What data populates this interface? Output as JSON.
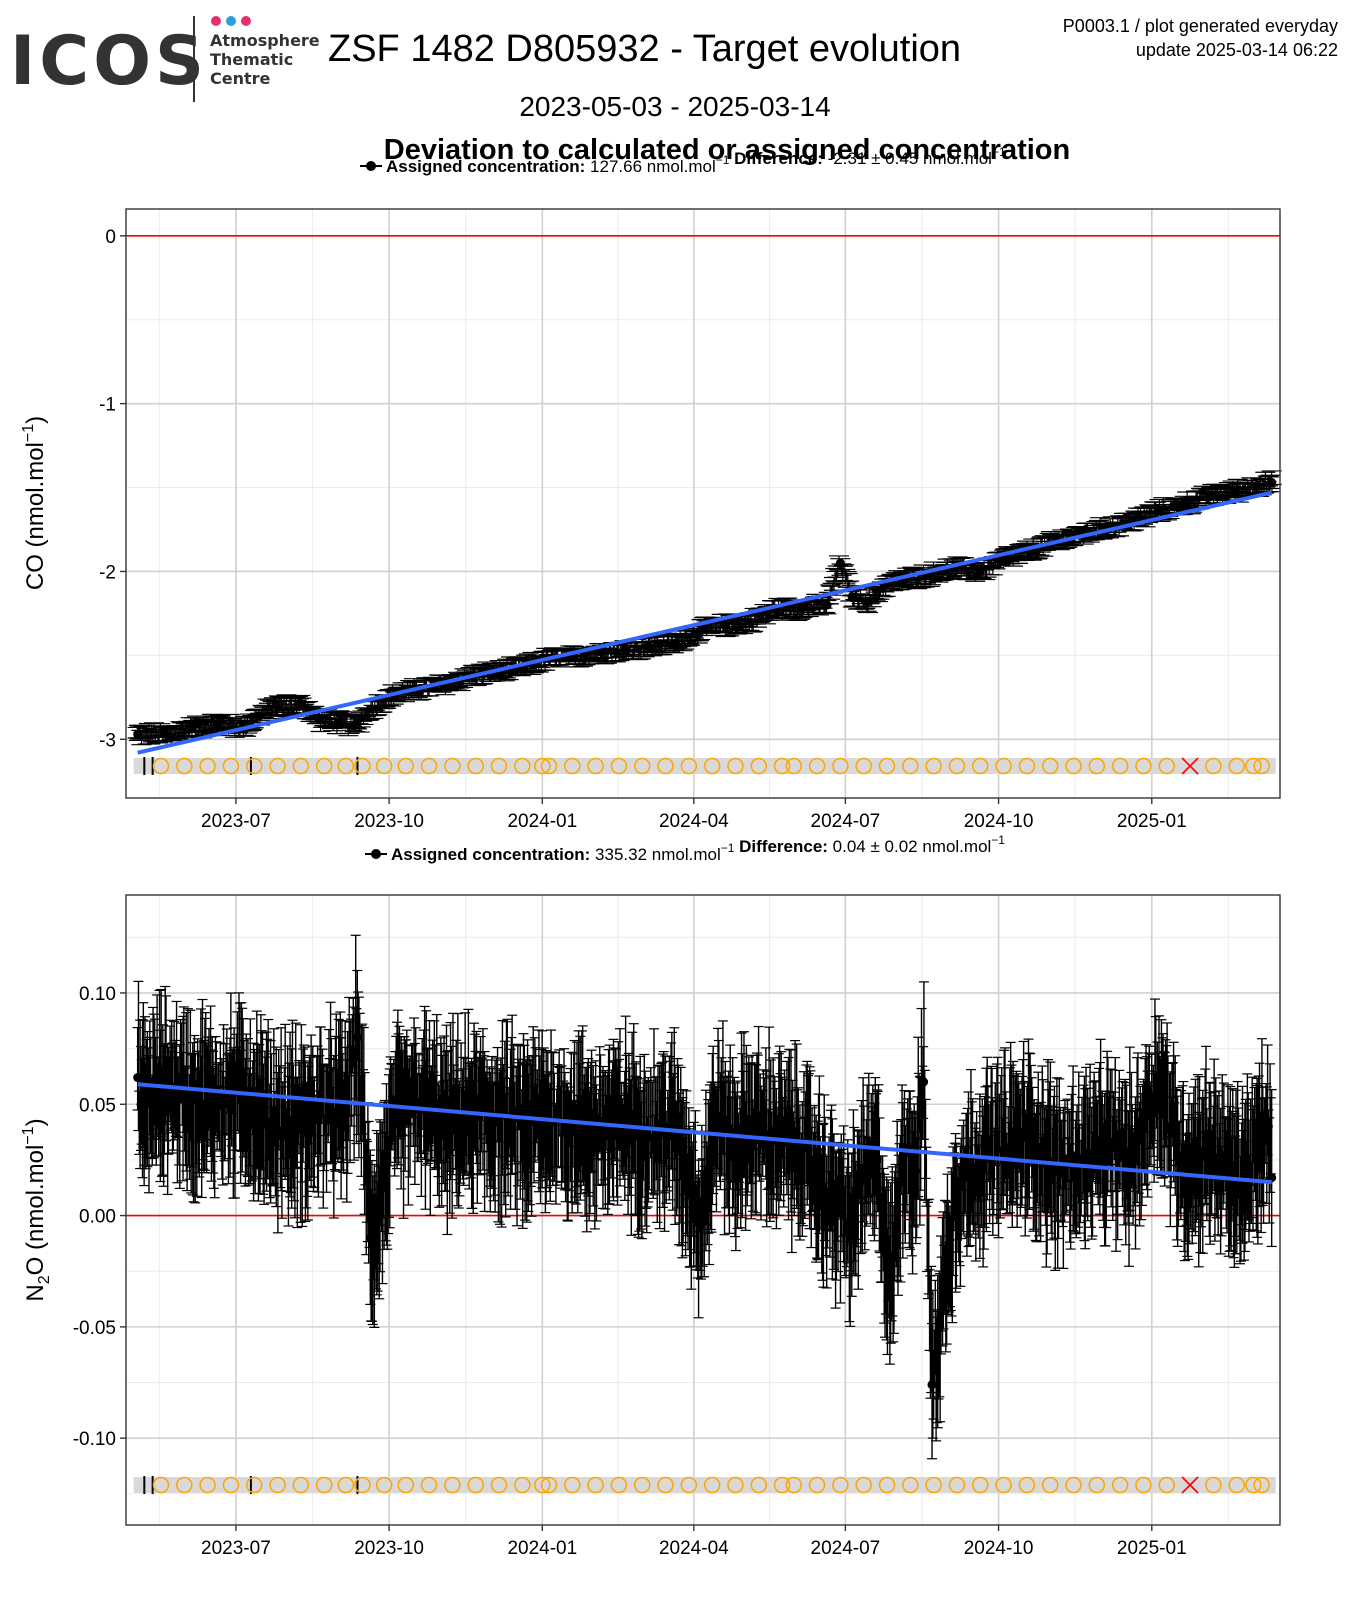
{
  "logo": {
    "wordmark": "ICOS",
    "subtitle_lines": [
      "Atmosphere",
      "Thematic",
      "Centre"
    ],
    "dot_colors": [
      "#e3316f",
      "#2d9fe0",
      "#e3316f"
    ]
  },
  "header": {
    "title": "ZSF 1482 D805932 - Target evolution",
    "date_range": "2023-05-03 - 2025-03-14",
    "subtitle": "Deviation to calculated or assigned concentration",
    "meta_line1": "P0003.1 / plot generated everyday",
    "meta_line2": "update  2025-03-14 06:22"
  },
  "colors": {
    "zero_line": "#ff0000",
    "trend_line": "#3366ff",
    "points": "#000000",
    "flag_circle": "#ffa500",
    "flag_cross": "#ff0000",
    "flag_band": "#d9d9d9",
    "grid_major": "#d0d0d0",
    "grid_minor": "#ececec"
  },
  "chart_data": [
    {
      "type": "scatter",
      "gas_main": "CO",
      "gas_sub": "",
      "ylabel_unit": "(nmol.mol",
      "legend": {
        "assigned_label": "Assigned concentration:",
        "assigned_value": "127.66 nmol.mol",
        "difference_label": "Difference:",
        "difference_value": "-2.31 ± 0.45 nmol.mol",
        "unit_exp": "−1"
      },
      "x_start": "2023-05-03",
      "x_end": "2025-03-14",
      "xlim": [
        "2023-04-26",
        "2025-03-19"
      ],
      "ylim": [
        -3.35,
        0.16
      ],
      "y_ticks": [
        0,
        -1,
        -2,
        -3
      ],
      "y_tick_labels": [
        "0",
        "-1",
        "-2",
        "-3"
      ],
      "x_ticks": [
        "2023-07-01",
        "2023-10-01",
        "2024-01-01",
        "2024-04-01",
        "2024-07-01",
        "2024-10-01",
        "2025-01-01"
      ],
      "x_tick_labels": [
        "2023-07",
        "2023-10",
        "2024-01",
        "2024-04",
        "2024-07",
        "2024-10",
        "2025-01"
      ],
      "zero_line": 0,
      "trend": {
        "x": [
          "2023-05-03",
          "2025-03-14"
        ],
        "y": [
          -3.08,
          -1.53
        ]
      },
      "points": {
        "x": [
          "2023-05-03",
          "2023-05-20",
          "2023-06-05",
          "2023-06-20",
          "2023-07-05",
          "2023-07-15",
          "2023-07-25",
          "2023-08-10",
          "2023-08-20",
          "2023-09-01",
          "2023-09-10",
          "2023-09-20",
          "2023-10-05",
          "2023-10-20",
          "2023-11-05",
          "2023-11-20",
          "2023-12-05",
          "2023-12-20",
          "2024-01-05",
          "2024-01-20",
          "2024-02-05",
          "2024-02-20",
          "2024-03-05",
          "2024-03-20",
          "2024-04-05",
          "2024-04-20",
          "2024-05-05",
          "2024-05-20",
          "2024-06-05",
          "2024-06-20",
          "2024-06-28",
          "2024-07-05",
          "2024-07-15",
          "2024-07-25",
          "2024-08-05",
          "2024-08-20",
          "2024-09-05",
          "2024-09-20",
          "2024-10-05",
          "2024-10-20",
          "2024-11-05",
          "2024-11-20",
          "2024-12-05",
          "2024-12-20",
          "2025-01-05",
          "2025-01-20",
          "2025-02-05",
          "2025-02-20",
          "2025-03-05",
          "2025-03-14"
        ],
        "y": [
          -2.97,
          -2.97,
          -2.93,
          -2.91,
          -2.93,
          -2.86,
          -2.8,
          -2.8,
          -2.88,
          -2.9,
          -2.92,
          -2.82,
          -2.73,
          -2.7,
          -2.67,
          -2.62,
          -2.6,
          -2.57,
          -2.52,
          -2.51,
          -2.48,
          -2.47,
          -2.45,
          -2.43,
          -2.35,
          -2.32,
          -2.3,
          -2.22,
          -2.22,
          -2.2,
          -1.95,
          -2.15,
          -2.18,
          -2.08,
          -2.05,
          -2.02,
          -1.98,
          -2.0,
          -1.92,
          -1.88,
          -1.82,
          -1.78,
          -1.74,
          -1.7,
          -1.64,
          -1.6,
          -1.55,
          -1.52,
          -1.49,
          -1.47
        ]
      },
      "flags": {
        "ticks": [
          "2023-05-07",
          "2023-05-12",
          "2023-07-10",
          "2023-09-12"
        ],
        "circles": [
          "2023-05-17",
          "2023-05-31",
          "2023-06-14",
          "2023-06-28",
          "2023-07-12",
          "2023-07-26",
          "2023-08-09",
          "2023-08-23",
          "2023-09-05",
          "2023-09-15",
          "2023-09-28",
          "2023-10-11",
          "2023-10-25",
          "2023-11-08",
          "2023-11-22",
          "2023-12-06",
          "2023-12-20",
          "2024-01-01",
          "2024-01-05",
          "2024-01-19",
          "2024-02-02",
          "2024-02-16",
          "2024-03-01",
          "2024-03-15",
          "2024-03-29",
          "2024-04-12",
          "2024-04-26",
          "2024-05-10",
          "2024-05-24",
          "2024-05-31",
          "2024-06-14",
          "2024-06-28",
          "2024-07-12",
          "2024-07-26",
          "2024-08-09",
          "2024-08-23",
          "2024-09-06",
          "2024-09-20",
          "2024-10-04",
          "2024-10-18",
          "2024-11-01",
          "2024-11-15",
          "2024-11-29",
          "2024-12-13",
          "2024-12-27",
          "2025-01-10",
          "2025-02-07",
          "2025-02-21",
          "2025-03-03",
          "2025-03-08"
        ],
        "crosses": [
          "2025-01-24"
        ]
      }
    },
    {
      "type": "scatter",
      "gas_main": "N",
      "gas_sub": "2",
      "gas_after": "O",
      "ylabel_unit": "(nmol.mol",
      "legend": {
        "assigned_label": "Assigned concentration:",
        "assigned_value": "335.32 nmol.mol",
        "difference_label": "Difference:",
        "difference_value": "0.04 ± 0.02 nmol.mol",
        "unit_exp": "−1"
      },
      "x_start": "2023-05-03",
      "x_end": "2025-03-14",
      "xlim": [
        "2023-04-26",
        "2025-03-19"
      ],
      "ylim": [
        -0.139,
        0.144
      ],
      "y_ticks": [
        0.1,
        0.05,
        0.0,
        -0.05,
        -0.1
      ],
      "y_tick_labels": [
        "0.10",
        "0.05",
        "0.00",
        "-0.05",
        "-0.10"
      ],
      "x_ticks": [
        "2023-07-01",
        "2023-10-01",
        "2024-01-01",
        "2024-04-01",
        "2024-07-01",
        "2024-10-01",
        "2025-01-01"
      ],
      "x_tick_labels": [
        "2023-07",
        "2023-10",
        "2024-01",
        "2024-04",
        "2024-07",
        "2024-10",
        "2025-01"
      ],
      "zero_line": 0,
      "trend": {
        "x": [
          "2023-05-03",
          "2025-03-14"
        ],
        "y": [
          0.059,
          0.015
        ]
      },
      "points": {
        "x": [
          "2023-05-03",
          "2023-05-05",
          "2023-05-20",
          "2023-06-05",
          "2023-06-20",
          "2023-07-05",
          "2023-07-20",
          "2023-08-05",
          "2023-08-20",
          "2023-09-05",
          "2023-09-12",
          "2023-09-20",
          "2023-09-25",
          "2023-10-05",
          "2023-10-20",
          "2023-11-05",
          "2023-11-20",
          "2023-12-05",
          "2023-12-20",
          "2024-01-05",
          "2024-01-20",
          "2024-02-05",
          "2024-02-20",
          "2024-03-05",
          "2024-03-20",
          "2024-04-05",
          "2024-04-15",
          "2024-04-25",
          "2024-05-05",
          "2024-05-20",
          "2024-06-05",
          "2024-06-20",
          "2024-07-05",
          "2024-07-10",
          "2024-07-20",
          "2024-07-28",
          "2024-08-05",
          "2024-08-12",
          "2024-08-17",
          "2024-08-22",
          "2024-09-05",
          "2024-09-20",
          "2024-10-05",
          "2024-10-20",
          "2024-11-05",
          "2024-11-20",
          "2024-12-05",
          "2024-12-20",
          "2025-01-05",
          "2025-01-20",
          "2025-02-05",
          "2025-02-20",
          "2025-03-05",
          "2025-03-12",
          "2025-03-14"
        ],
        "y": [
          0.062,
          0.05,
          0.058,
          0.052,
          0.05,
          0.055,
          0.042,
          0.04,
          0.045,
          0.048,
          0.08,
          -0.01,
          0.005,
          0.045,
          0.05,
          0.04,
          0.045,
          0.042,
          0.04,
          0.043,
          0.04,
          0.038,
          0.042,
          0.035,
          0.04,
          0.0,
          0.045,
          0.03,
          0.04,
          0.035,
          0.03,
          0.01,
          -0.005,
          0.015,
          0.025,
          -0.033,
          0.03,
          0.02,
          0.06,
          -0.076,
          0.01,
          0.025,
          0.03,
          0.035,
          0.02,
          0.025,
          0.03,
          0.025,
          0.06,
          0.02,
          0.03,
          0.015,
          0.025,
          0.04,
          0.017
        ]
      },
      "flags": {
        "ticks": [
          "2023-05-07",
          "2023-05-12",
          "2023-07-10",
          "2023-09-12"
        ],
        "circles": [
          "2023-05-17",
          "2023-05-31",
          "2023-06-14",
          "2023-06-28",
          "2023-07-12",
          "2023-07-26",
          "2023-08-09",
          "2023-08-23",
          "2023-09-05",
          "2023-09-15",
          "2023-09-28",
          "2023-10-11",
          "2023-10-25",
          "2023-11-08",
          "2023-11-22",
          "2023-12-06",
          "2023-12-20",
          "2024-01-01",
          "2024-01-05",
          "2024-01-19",
          "2024-02-02",
          "2024-02-16",
          "2024-03-01",
          "2024-03-15",
          "2024-03-29",
          "2024-04-12",
          "2024-04-26",
          "2024-05-10",
          "2024-05-24",
          "2024-05-31",
          "2024-06-14",
          "2024-06-28",
          "2024-07-12",
          "2024-07-26",
          "2024-08-09",
          "2024-08-23",
          "2024-09-06",
          "2024-09-20",
          "2024-10-04",
          "2024-10-18",
          "2024-11-01",
          "2024-11-15",
          "2024-11-29",
          "2024-12-13",
          "2024-12-27",
          "2025-01-10",
          "2025-02-07",
          "2025-02-21",
          "2025-03-03",
          "2025-03-08"
        ],
        "crosses": [
          "2025-01-24"
        ]
      }
    }
  ]
}
